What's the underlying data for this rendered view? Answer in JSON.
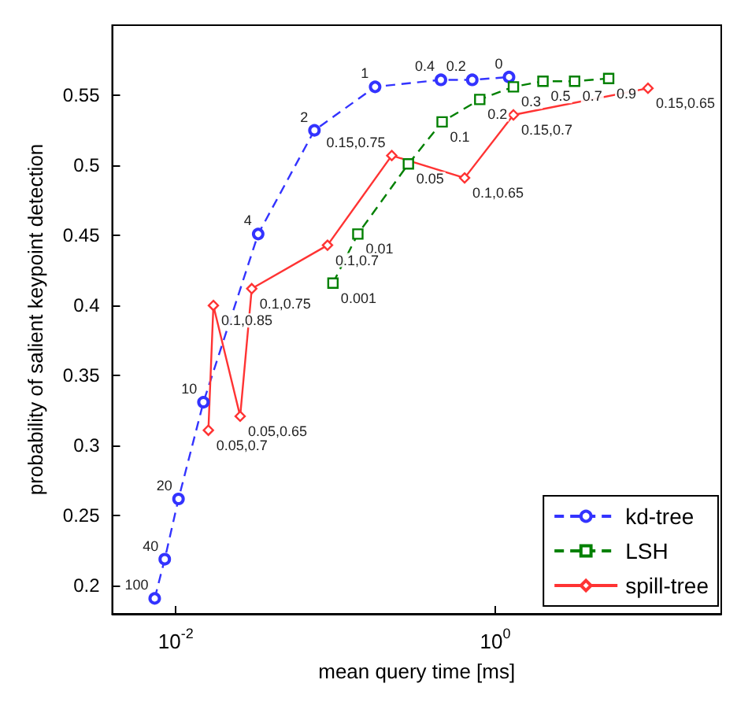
{
  "chart_data": {
    "type": "line",
    "xlabel": "mean query time [ms]",
    "ylabel": "probability of salient keypoint detection",
    "log": "x",
    "xlim": [
      0.004,
      26
    ],
    "xticks": [
      {
        "value": 0.01,
        "label": "10$^{-2}$"
      },
      {
        "value": 1,
        "label": "10$^{0}$"
      }
    ],
    "ylim": [
      0.18,
      0.6
    ],
    "yticks": [
      0.2,
      0.25,
      0.3,
      0.35,
      0.4,
      0.45,
      0.5,
      0.55
    ],
    "grid": false,
    "legend": "bottom right",
    "series": [
      {
        "name": "kd-tree",
        "color": "#3333ff",
        "marker": "circle",
        "line_style": "dashed",
        "x": [
          0.00738,
          0.00853,
          0.0104,
          0.0149,
          0.0328,
          0.0738,
          0.177,
          0.457,
          0.718,
          1.22
        ],
        "values": [
          0.191,
          0.219,
          0.262,
          0.331,
          0.451,
          0.525,
          0.556,
          0.561,
          0.561,
          0.563
        ]
      },
      {
        "name": "LSH",
        "color": "#008000",
        "marker": "square",
        "line_style": "dashed",
        "x": [
          0.0964,
          0.138,
          0.286,
          0.465,
          0.8,
          1.3,
          1.99,
          3.14,
          5.13
        ],
        "values": [
          0.416,
          0.451,
          0.501,
          0.531,
          0.547,
          0.556,
          0.56,
          0.56,
          0.562
        ]
      },
      {
        "name": "spill-tree",
        "color": "#ff3333",
        "marker": "diamond",
        "line_style": "solid",
        "x": [
          0.016,
          0.0172,
          0.0253,
          0.0299,
          0.0891,
          0.225,
          0.643,
          1.3,
          9.04
        ],
        "values": [
          0.311,
          0.4,
          0.321,
          0.412,
          0.443,
          0.507,
          0.491,
          0.536,
          0.555
        ]
      }
    ],
    "annotations": [
      {
        "text": "100",
        "x": 0.00738,
        "y": 0.191
      },
      {
        "text": "40",
        "x": 0.00853,
        "y": 0.219
      },
      {
        "text": "20",
        "x": 0.0104,
        "y": 0.262
      },
      {
        "text": "10",
        "x": 0.0149,
        "y": 0.331
      },
      {
        "text": "4",
        "x": 0.0328,
        "y": 0.451
      },
      {
        "text": "2",
        "x": 0.0738,
        "y": 0.525
      },
      {
        "text": "1",
        "x": 0.177,
        "y": 0.556
      },
      {
        "text": "0.4",
        "x": 0.457,
        "y": 0.561
      },
      {
        "text": "0.2",
        "x": 0.718,
        "y": 0.561
      },
      {
        "text": "0",
        "x": 1.22,
        "y": 0.563
      },
      {
        "text": "0.001",
        "x": 0.0964,
        "y": 0.416
      },
      {
        "text": "0.01",
        "x": 0.138,
        "y": 0.451
      },
      {
        "text": "0.05",
        "x": 0.286,
        "y": 0.501
      },
      {
        "text": "0.1",
        "x": 0.465,
        "y": 0.531
      },
      {
        "text": "0.2",
        "x": 0.8,
        "y": 0.547
      },
      {
        "text": "0.3",
        "x": 1.3,
        "y": 0.556
      },
      {
        "text": "0.5",
        "x": 1.99,
        "y": 0.56
      },
      {
        "text": "0.7",
        "x": 3.14,
        "y": 0.56
      },
      {
        "text": "0.9",
        "x": 5.13,
        "y": 0.562
      },
      {
        "text": "0.05,0.7",
        "x": 0.016,
        "y": 0.311
      },
      {
        "text": "0.1,0.85",
        "x": 0.0172,
        "y": 0.4
      },
      {
        "text": "0.05,0.65",
        "x": 0.0253,
        "y": 0.321
      },
      {
        "text": "0.1,0.75",
        "x": 0.0299,
        "y": 0.412
      },
      {
        "text": "0.1,0.7",
        "x": 0.0891,
        "y": 0.443
      },
      {
        "text": "0.15,0.75",
        "x": 0.225,
        "y": 0.507
      },
      {
        "text": "0.1,0.65",
        "x": 0.643,
        "y": 0.491
      },
      {
        "text": "0.15,0.7",
        "x": 1.3,
        "y": 0.536
      },
      {
        "text": "0.15,0.65",
        "x": 9.04,
        "y": 0.555
      }
    ]
  }
}
